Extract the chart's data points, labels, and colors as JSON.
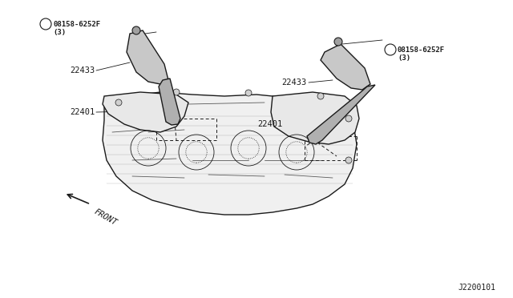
{
  "background_color": "#ffffff",
  "line_color": "#1a1a1a",
  "label_color": "#1a1a1a",
  "part_numbers": {
    "bolt_left": "08158-6252F\n(3)",
    "bolt_right": "08158-6252F\n(3)",
    "coil_left": "22433",
    "coil_right": "22433",
    "plug_left": "22401",
    "plug_right": "22401"
  },
  "diagram_id": "J2200101",
  "front_label": "FRONT"
}
